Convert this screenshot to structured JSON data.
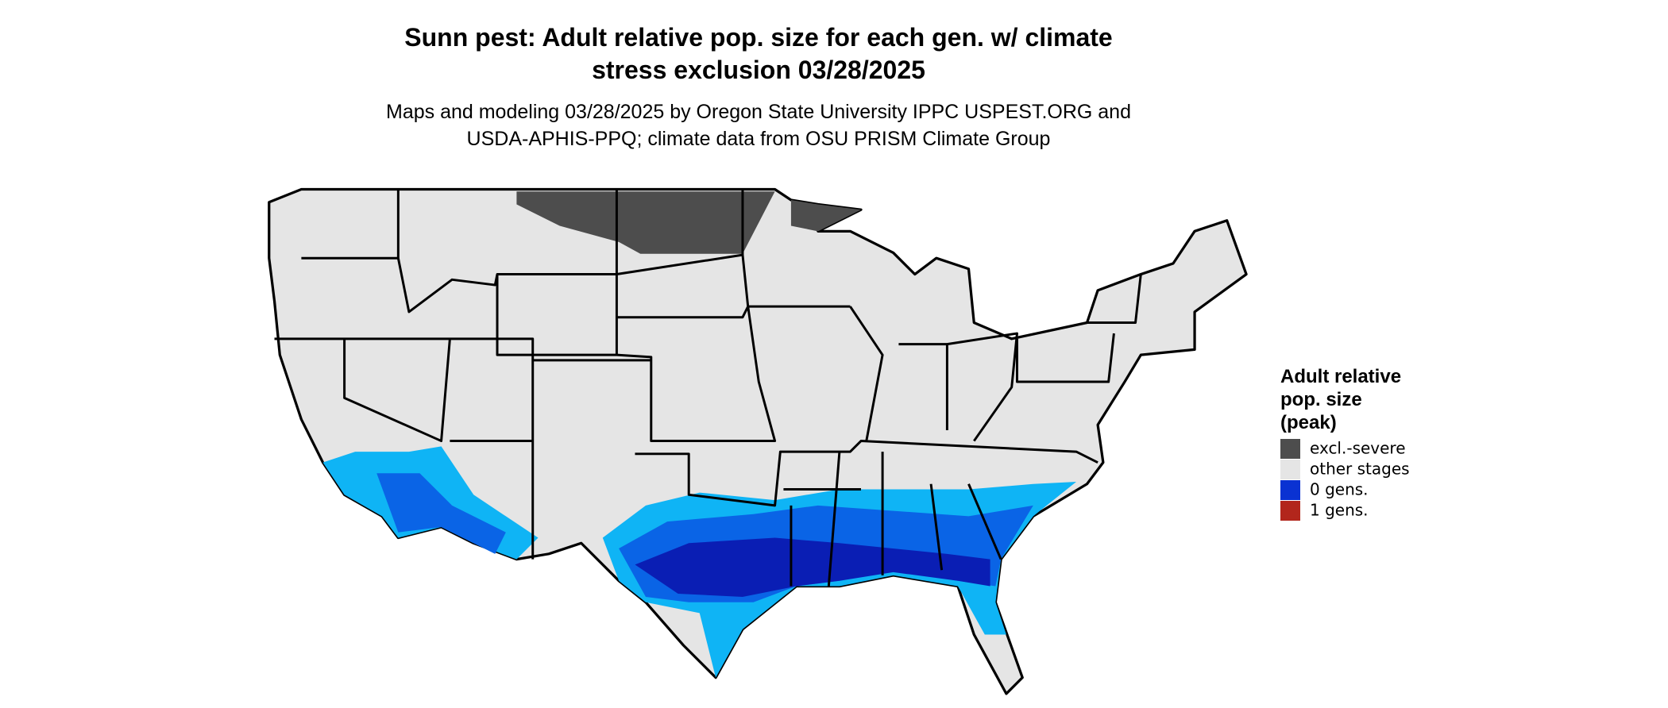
{
  "title": [
    "Sunn pest: Adult relative pop. size for each gen. w/ climate",
    "stress exclusion 03/28/2025"
  ],
  "subtitle": [
    "Maps and modeling 03/28/2025 by Oregon State University IPPC USPEST.ORG and",
    "USDA-APHIS-PPQ; climate data from OSU PRISM Climate Group"
  ],
  "legend": {
    "title": [
      "Adult relative",
      "pop. size",
      "(peak)"
    ],
    "items": [
      {
        "label": "excl.-severe",
        "color": "#4d4d4d"
      },
      {
        "label": "other stages",
        "color": "#e5e5e5"
      },
      {
        "label": "0 gens.",
        "color": "#0a32d2"
      },
      {
        "label": "1 gens.",
        "color": "#b2261c"
      }
    ]
  }
}
